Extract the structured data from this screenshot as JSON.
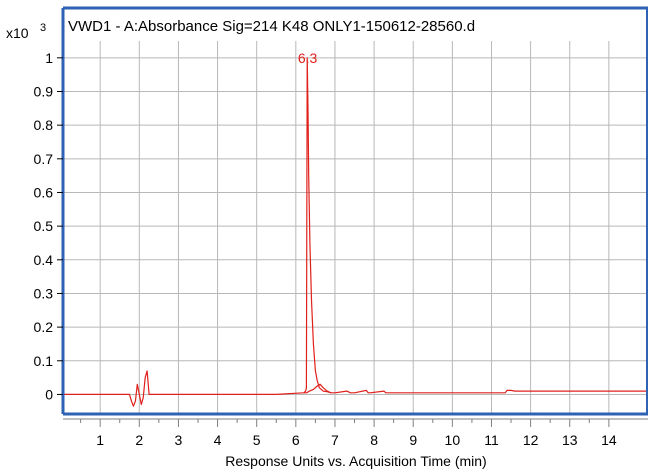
{
  "chart_data": {
    "type": "line",
    "title": "VWD1 - A:Absorbance Sig=214 K48 ONLY1-150612-28560.d",
    "ylabel_multiplier": "x10",
    "ylabel_exponent": "3",
    "xlabel": "Response Units vs. Acquisition Time (min)",
    "xlim": [
      0.05,
      15.0
    ],
    "ylim": [
      -0.07,
      1.05
    ],
    "x_ticks": [
      1,
      2,
      3,
      4,
      5,
      6,
      7,
      8,
      9,
      10,
      11,
      12,
      13,
      14
    ],
    "x_tick_labels": [
      "1",
      "2",
      "3",
      "4",
      "5",
      "6",
      "7",
      "8",
      "9",
      "10",
      "11",
      "12",
      "13",
      "14"
    ],
    "y_ticks": [
      0,
      0.1,
      0.2,
      0.3,
      0.4,
      0.5,
      0.6,
      0.7,
      0.8,
      0.9,
      1
    ],
    "y_tick_labels": [
      "0",
      "0.1",
      "0.2",
      "0.3",
      "0.4",
      "0.5",
      "0.6",
      "0.7",
      "0.8",
      "0.9",
      "1"
    ],
    "grid": true,
    "colors": {
      "trace": "#e0201b",
      "frame": "#2e62b4",
      "grid": "#b8b8b8"
    },
    "peak_label": {
      "text": "6.3",
      "x": 6.3,
      "y": 1.0
    },
    "series": [
      {
        "values_x": [
          0.05,
          1.75,
          1.8,
          1.85,
          1.9,
          1.95,
          2.0,
          2.05,
          2.1,
          2.15,
          2.2,
          2.25,
          2.3,
          2.35,
          2.4,
          5.5,
          6.2,
          6.25,
          6.27,
          6.29,
          6.31,
          6.33,
          6.36,
          6.4,
          6.45,
          6.5,
          6.55,
          6.6,
          6.65,
          6.7,
          6.8,
          6.9,
          7.0,
          7.3,
          7.4,
          7.5,
          7.8,
          7.85,
          7.9,
          8.25,
          8.3,
          8.35,
          8.7,
          11.35,
          11.4,
          11.5,
          11.6,
          15.0
        ],
        "values_y": [
          0.0,
          0.0,
          -0.02,
          -0.035,
          -0.02,
          0.03,
          0.0,
          -0.03,
          -0.01,
          0.05,
          0.07,
          0.0,
          0.0,
          0.0,
          0.0,
          0.0,
          0.005,
          0.01,
          0.02,
          1.0,
          0.85,
          0.65,
          0.45,
          0.28,
          0.15,
          0.07,
          0.04,
          0.02,
          0.015,
          0.01,
          0.008,
          0.005,
          0.005,
          0.01,
          0.005,
          0.005,
          0.012,
          0.005,
          0.005,
          0.01,
          0.005,
          0.005,
          0.005,
          0.005,
          0.012,
          0.012,
          0.01,
          0.01
        ]
      },
      {
        "values_x": [
          6.2,
          6.27,
          6.35,
          6.45,
          6.55,
          6.62,
          6.7,
          6.8,
          6.9
        ],
        "values_y": [
          0.005,
          0.005,
          0.01,
          0.015,
          0.025,
          0.03,
          0.02,
          0.01,
          0.005
        ]
      }
    ]
  }
}
